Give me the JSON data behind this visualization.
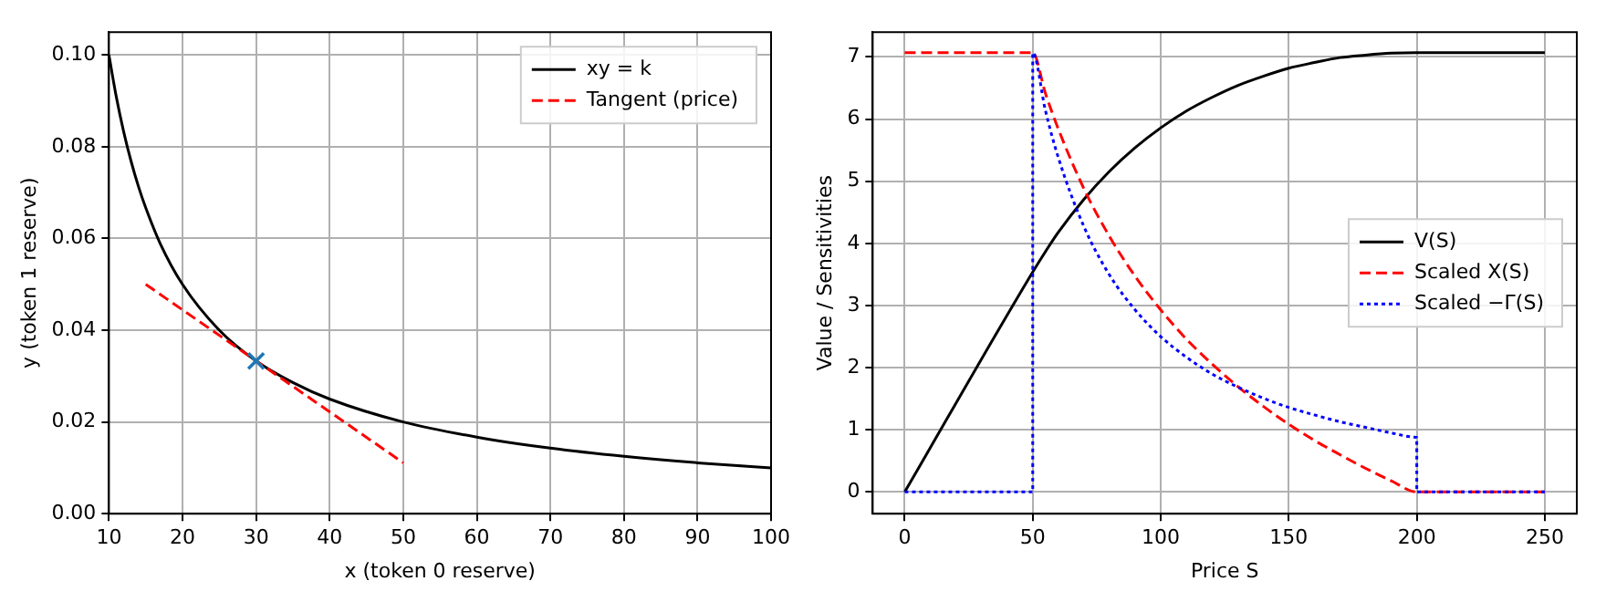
{
  "chart_data": [
    {
      "type": "line",
      "xlabel": "x (token 0 reserve)",
      "ylabel": "y (token 1 reserve)",
      "xlim": [
        10,
        100
      ],
      "xticks": [
        10,
        20,
        30,
        40,
        50,
        60,
        70,
        80,
        90,
        100
      ],
      "ylim": [
        0,
        0.105
      ],
      "yticks": [
        {
          "value": 0,
          "label": "0.00"
        },
        {
          "value": 0.02,
          "label": "0.02"
        },
        {
          "value": 0.04,
          "label": "0.04"
        },
        {
          "value": 0.06,
          "label": "0.06"
        },
        {
          "value": 0.08,
          "label": "0.08"
        },
        {
          "value": 0.1,
          "label": "0.10"
        }
      ],
      "grid": true,
      "legend": "top right",
      "series": [
        {
          "name": "xy = k",
          "color": "#000000",
          "line_style": "solid",
          "x": [
            10,
            11,
            12,
            13,
            14,
            15,
            17,
            20,
            25,
            30,
            35,
            40,
            50,
            60,
            70,
            80,
            90,
            100
          ],
          "values": [
            0.1,
            0.0909,
            0.0833,
            0.0769,
            0.0714,
            0.0667,
            0.0588,
            0.05,
            0.04,
            0.0333,
            0.0286,
            0.025,
            0.02,
            0.0167,
            0.0143,
            0.0125,
            0.0111,
            0.01
          ]
        },
        {
          "name": "Tangent (price)",
          "color": "#ff0000",
          "line_style": "dashed",
          "x": [
            15,
            50
          ],
          "values": [
            0.05,
            0.0111
          ]
        },
        {
          "type": "scatter",
          "color": "#1f77b4",
          "marker": "cross",
          "x": [
            30
          ],
          "values": [
            0.0333
          ]
        }
      ]
    },
    {
      "type": "line",
      "xlabel": "Price S",
      "ylabel": "Value / Sensitivities",
      "xlim": [
        -12.5,
        262.5
      ],
      "xticks": [
        0,
        50,
        100,
        150,
        200,
        250
      ],
      "ylim": [
        -0.35,
        7.4
      ],
      "yticks": [
        0,
        1,
        2,
        3,
        4,
        5,
        6,
        7
      ],
      "grid": true,
      "legend": "right",
      "series": [
        {
          "name": "V(S)",
          "color": "#000000",
          "line_style": "solid",
          "x": [
            0,
            50,
            55,
            60,
            70,
            80,
            90,
            100,
            110,
            120,
            130,
            140,
            150,
            160,
            170,
            180,
            190,
            200,
            250
          ],
          "values": [
            0,
            3.54,
            3.87,
            4.18,
            4.71,
            5.16,
            5.54,
            5.86,
            6.13,
            6.35,
            6.54,
            6.69,
            6.82,
            6.91,
            6.99,
            7.03,
            7.06,
            7.07,
            7.07
          ]
        },
        {
          "name": "Scaled X(S)",
          "color": "#ff0000",
          "line_style": "dashed",
          "x": [
            0,
            50,
            55,
            60,
            70,
            80,
            90,
            100,
            110,
            120,
            130,
            140,
            150,
            160,
            170,
            180,
            190,
            200,
            250
          ],
          "values": [
            7.07,
            7.07,
            6.41,
            5.84,
            4.88,
            4.11,
            3.47,
            2.93,
            2.46,
            2.06,
            1.7,
            1.38,
            1.09,
            0.83,
            0.6,
            0.38,
            0.18,
            0,
            0
          ]
        },
        {
          "name": "Scaled −Γ(S)",
          "color": "#0000ff",
          "line_style": "dotted",
          "x": [
            0,
            50,
            50,
            55,
            60,
            70,
            80,
            90,
            100,
            110,
            120,
            130,
            140,
            150,
            160,
            170,
            180,
            190,
            200,
            200,
            250
          ],
          "values": [
            0,
            0,
            7.07,
            6.13,
            5.38,
            4.27,
            3.49,
            2.93,
            2.5,
            2.17,
            1.9,
            1.69,
            1.51,
            1.36,
            1.24,
            1.13,
            1.04,
            0.95,
            0.88,
            0,
            0
          ]
        }
      ]
    }
  ]
}
